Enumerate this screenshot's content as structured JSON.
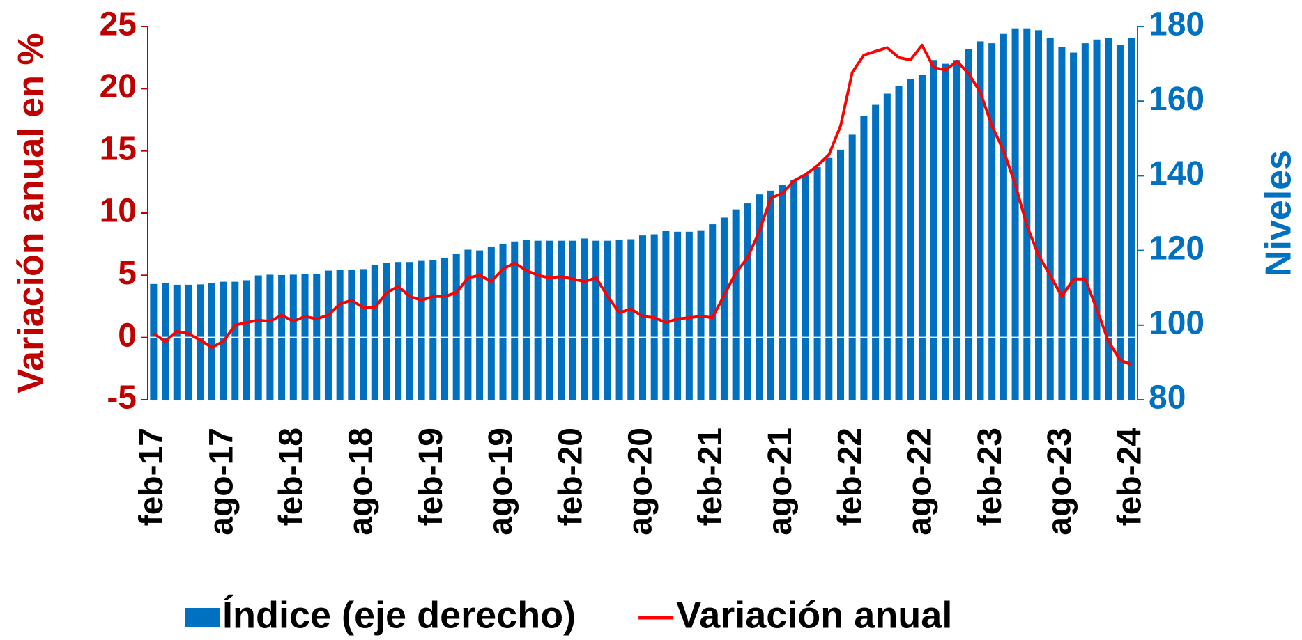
{
  "chart_data": {
    "type": "bar",
    "ylabel": "Variación anual en %",
    "y2label": "Niveles",
    "categories": [
      "feb-17",
      null,
      null,
      null,
      null,
      null,
      "ago-17",
      null,
      null,
      null,
      null,
      null,
      "feb-18",
      null,
      null,
      null,
      null,
      null,
      "ago-18",
      null,
      null,
      null,
      null,
      null,
      "feb-19",
      null,
      null,
      null,
      null,
      null,
      "ago-19",
      null,
      null,
      null,
      null,
      null,
      "feb-20",
      null,
      null,
      null,
      null,
      null,
      "ago-20",
      null,
      null,
      null,
      null,
      null,
      "feb-21",
      null,
      null,
      null,
      null,
      null,
      "ago-21",
      null,
      null,
      null,
      null,
      null,
      "feb-22",
      null,
      null,
      null,
      null,
      null,
      "ago-22",
      null,
      null,
      null,
      null,
      null,
      "feb-23",
      null,
      null,
      null,
      null,
      null,
      "ago-23",
      null,
      null,
      null,
      null,
      null,
      "feb-24"
    ],
    "series": [
      {
        "name": "Índice (eje derecho)",
        "type": "bar",
        "axis": "y2",
        "color": "#0070c0",
        "values": [
          111.0,
          111.3,
          110.8,
          110.8,
          110.9,
          111.2,
          111.6,
          111.6,
          112.0,
          113.3,
          113.5,
          113.4,
          113.5,
          113.7,
          113.7,
          114.6,
          114.8,
          114.8,
          115.0,
          116.2,
          116.6,
          116.9,
          116.9,
          117.2,
          117.4,
          118.0,
          119.0,
          120.2,
          120.0,
          121.0,
          121.8,
          122.4,
          122.8,
          122.6,
          122.6,
          122.6,
          122.6,
          123.2,
          122.6,
          122.6,
          122.8,
          123.0,
          124.0,
          124.3,
          125.2,
          125.0,
          125.0,
          125.4,
          127.0,
          128.8,
          131.0,
          132.6,
          135.0,
          136.0,
          137.6,
          138.8,
          140.3,
          142.3,
          144.8,
          147.0,
          151.0,
          156.0,
          159.0,
          162.0,
          164.0,
          166.0,
          167.0,
          171.0,
          170.0,
          171.0,
          174.0,
          176.0,
          175.5,
          178.0,
          179.5,
          179.5,
          179.0,
          177.0,
          174.5,
          173.0,
          175.5,
          176.5,
          177.0,
          175.0,
          177.0
        ]
      },
      {
        "name": "Variación anual",
        "type": "line",
        "color": "#ff0000",
        "values": [
          0.3,
          -0.3,
          0.5,
          0.3,
          -0.2,
          -0.8,
          -0.3,
          1.0,
          1.2,
          1.4,
          1.3,
          1.8,
          1.3,
          1.7,
          1.5,
          1.8,
          2.7,
          3.0,
          2.4,
          2.4,
          3.6,
          4.1,
          3.3,
          3.0,
          3.3,
          3.3,
          3.6,
          4.8,
          5.0,
          4.5,
          5.5,
          6.0,
          5.4,
          5.0,
          4.8,
          4.9,
          4.7,
          4.5,
          4.8,
          3.3,
          2.0,
          2.3,
          1.7,
          1.6,
          1.2,
          1.5,
          1.6,
          1.7,
          1.6,
          3.4,
          5.2,
          6.4,
          8.5,
          11.2,
          11.6,
          12.6,
          13.1,
          13.8,
          14.7,
          17.0,
          21.3,
          22.7,
          23.0,
          23.3,
          22.5,
          22.3,
          23.5,
          21.7,
          21.5,
          22.2,
          21.2,
          19.7,
          17.0,
          15.0,
          12.3,
          9.0,
          6.6,
          5.0,
          3.3,
          4.7,
          4.7,
          2.3,
          -0.3,
          -1.8,
          -2.2
        ]
      }
    ],
    "ylim": [
      -5,
      25
    ],
    "yticks": [
      -5,
      0,
      5,
      10,
      15,
      20,
      25
    ],
    "y2lim": [
      80,
      180
    ],
    "y2ticks": [
      80,
      100,
      120,
      140,
      160,
      180
    ],
    "ycolor": "#c00000",
    "y2color": "#0070c0"
  }
}
